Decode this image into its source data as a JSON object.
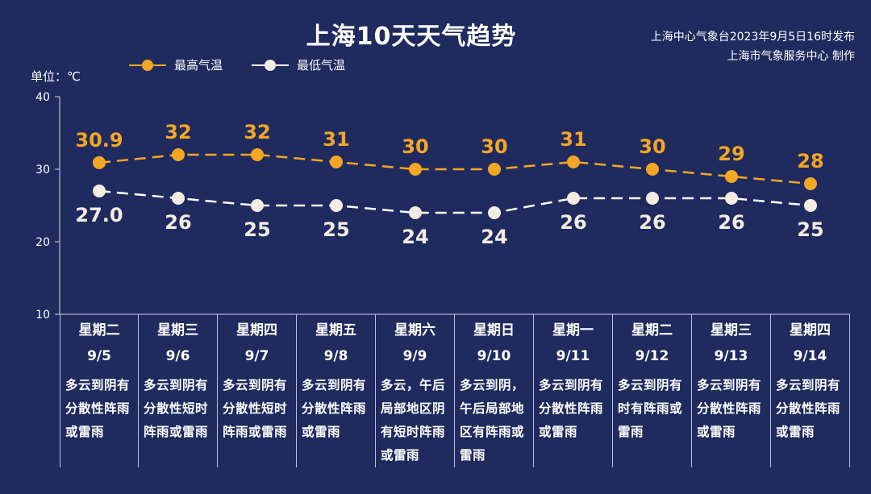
{
  "title": "上海10天天气趋势",
  "issuer_line1": "上海中心气象台2023年9月5日16时发布",
  "issuer_line2": "上海市气象服务中心 制作",
  "unit_label": "单位：℃",
  "colors": {
    "background": "#1f2b5e",
    "high": "#f5a623",
    "low": "#ffffff"
  },
  "chart_data": {
    "type": "line",
    "ylim": [
      10,
      40
    ],
    "yticks": [
      10,
      20,
      30,
      40
    ],
    "categories": [
      "9/5",
      "9/6",
      "9/7",
      "9/8",
      "9/9",
      "9/10",
      "9/11",
      "9/12",
      "9/13",
      "9/14"
    ],
    "series": [
      {
        "name": "最高气温",
        "values": [
          30.9,
          32,
          32,
          31,
          30,
          30,
          31,
          30,
          29,
          28
        ],
        "labels": [
          "30.9",
          "32",
          "32",
          "31",
          "30",
          "30",
          "31",
          "30",
          "29",
          "28"
        ]
      },
      {
        "name": "最低气温",
        "values": [
          27.0,
          26,
          25,
          25,
          24,
          24,
          26,
          26,
          26,
          25
        ],
        "labels": [
          "27.0",
          "26",
          "25",
          "25",
          "24",
          "24",
          "26",
          "26",
          "26",
          "25"
        ]
      }
    ]
  },
  "days": [
    {
      "weekday": "星期二",
      "date": "9/5",
      "weather": [
        "多云到阴有",
        "分散性阵雨",
        "或雷雨"
      ]
    },
    {
      "weekday": "星期三",
      "date": "9/6",
      "weather": [
        "多云到阴有",
        "分散性短时",
        "阵雨或雷雨"
      ]
    },
    {
      "weekday": "星期四",
      "date": "9/7",
      "weather": [
        "多云到阴有",
        "分散性短时",
        "阵雨或雷雨"
      ]
    },
    {
      "weekday": "星期五",
      "date": "9/8",
      "weather": [
        "多云到阴有",
        "分散性阵雨",
        "或雷雨"
      ]
    },
    {
      "weekday": "星期六",
      "date": "9/9",
      "weather": [
        "多云，午后",
        "局部地区阴",
        "有短时阵雨",
        "或雷雨"
      ]
    },
    {
      "weekday": "星期日",
      "date": "9/10",
      "weather": [
        "多云到阴，",
        "午后局部地",
        "区有阵雨或",
        "雷雨"
      ]
    },
    {
      "weekday": "星期一",
      "date": "9/11",
      "weather": [
        "多云到阴有",
        "分散性阵雨",
        "或雷雨"
      ]
    },
    {
      "weekday": "星期二",
      "date": "9/12",
      "weather": [
        "多云到阴有",
        "时有阵雨或",
        "雷雨"
      ]
    },
    {
      "weekday": "星期三",
      "date": "9/13",
      "weather": [
        "多云到阴有",
        "分散性阵雨",
        "或雷雨"
      ]
    },
    {
      "weekday": "星期四",
      "date": "9/14",
      "weather": [
        "多云到阴有",
        "分散性阵雨",
        "或雷雨"
      ]
    }
  ]
}
